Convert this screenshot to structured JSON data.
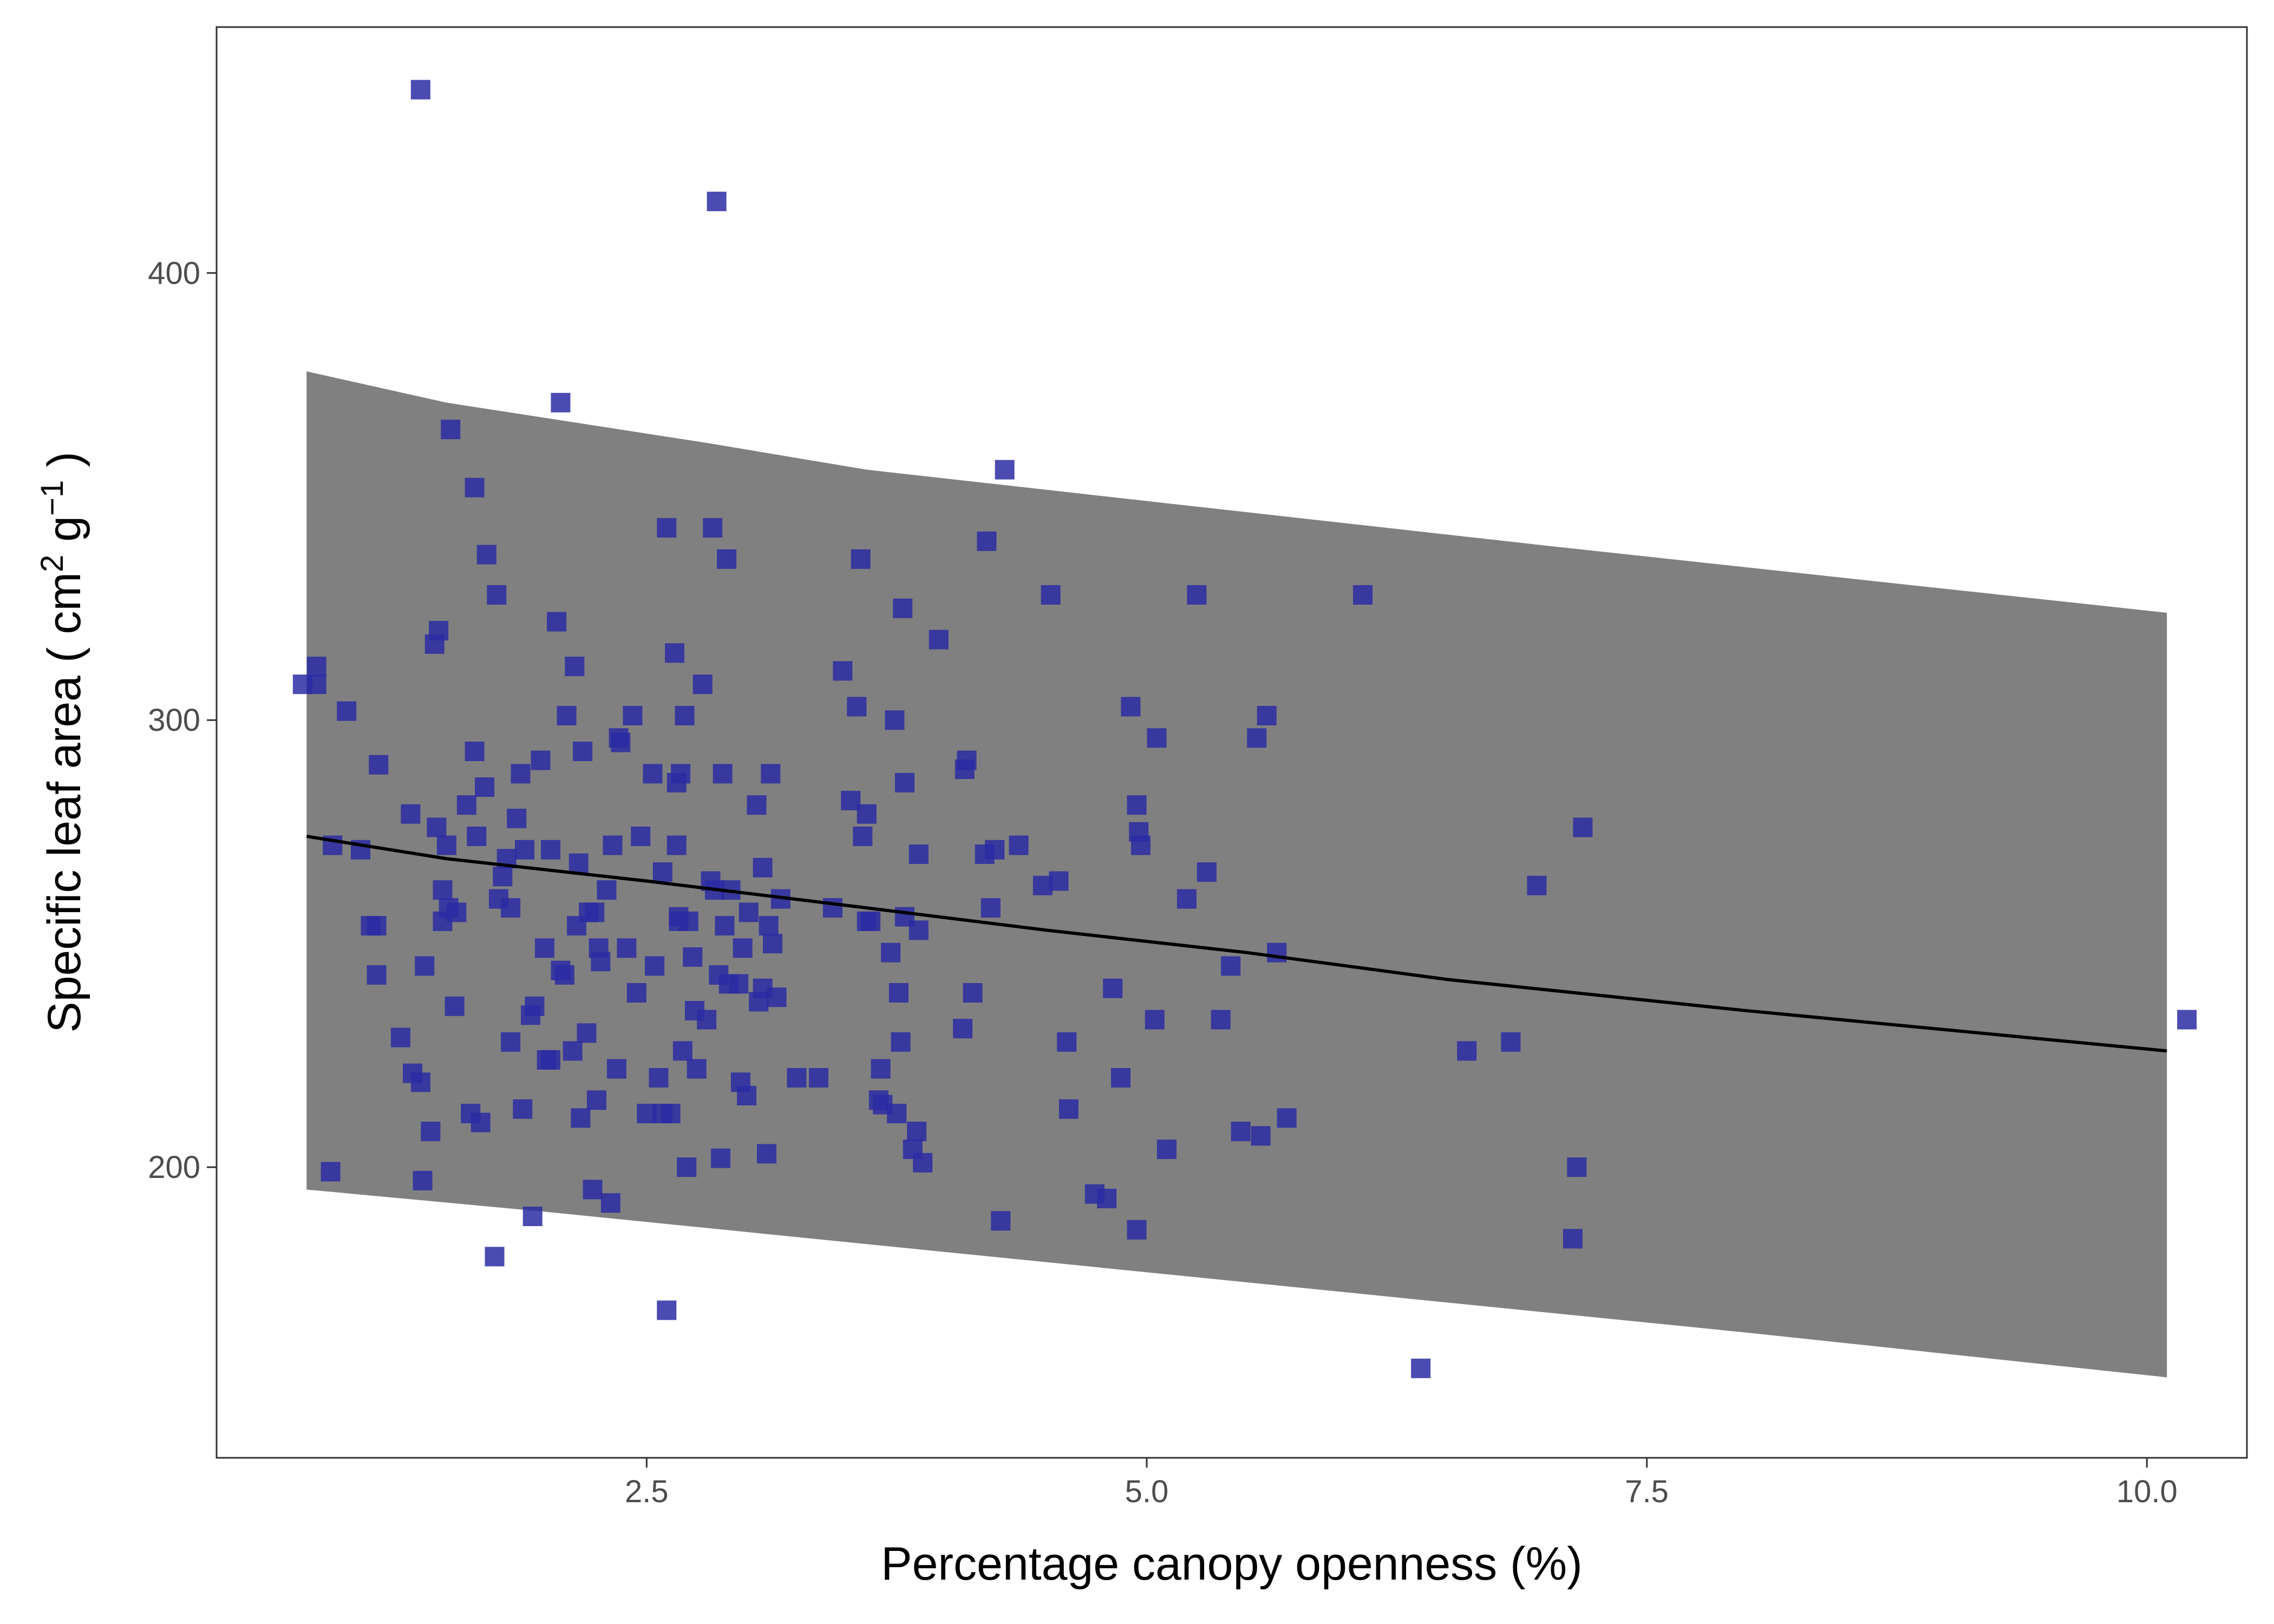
{
  "chart_data": {
    "type": "scatter",
    "xlabel": "Percentage canopy openness (%)",
    "ylabel": {
      "prefix": "Specific leaf area ( cm",
      "exp1": "2",
      "mid": " g",
      "exp2": "−1",
      "suffix": " )"
    },
    "xlim": [
      0.35,
      10.5
    ],
    "ylim": [
      135,
      455
    ],
    "x_ticks": [
      {
        "value": 2.5,
        "label": "2.5"
      },
      {
        "value": 5.0,
        "label": "5.0"
      },
      {
        "value": 7.5,
        "label": "7.5"
      },
      {
        "value": 10.0,
        "label": "10.0"
      }
    ],
    "y_ticks": [
      {
        "value": 200,
        "label": "200"
      },
      {
        "value": 300,
        "label": "300"
      },
      {
        "value": 400,
        "label": "400"
      }
    ],
    "grid": false,
    "legend": "none",
    "colors": {
      "point": "#2b2ba3",
      "band": "#808080",
      "fit_line": "#000000",
      "panel_border": "#333333"
    },
    "fit_line": [
      [
        0.8,
        274
      ],
      [
        1.5,
        269
      ],
      [
        2.5,
        264
      ],
      [
        3.6,
        258
      ],
      [
        4.5,
        253
      ],
      [
        5.5,
        248
      ],
      [
        6.5,
        242
      ],
      [
        8.0,
        235
      ],
      [
        10.1,
        226
      ]
    ],
    "prediction_band": {
      "upper": [
        [
          0.8,
          378
        ],
        [
          1.5,
          371
        ],
        [
          2.8,
          362
        ],
        [
          3.6,
          356
        ],
        [
          5.0,
          349
        ],
        [
          7.0,
          339
        ],
        [
          10.1,
          324
        ]
      ],
      "lower": [
        [
          0.8,
          195
        ],
        [
          2.0,
          190
        ],
        [
          4.0,
          181
        ],
        [
          6.0,
          172
        ],
        [
          8.0,
          163
        ],
        [
          10.1,
          153
        ]
      ]
    },
    "points": [
      [
        0.78,
        308
      ],
      [
        0.85,
        308
      ],
      [
        0.85,
        312
      ],
      [
        0.93,
        272
      ],
      [
        0.92,
        199
      ],
      [
        1.0,
        302
      ],
      [
        1.07,
        271
      ],
      [
        1.12,
        254
      ],
      [
        1.15,
        254
      ],
      [
        1.15,
        243
      ],
      [
        1.16,
        290
      ],
      [
        1.27,
        229
      ],
      [
        1.32,
        279
      ],
      [
        1.33,
        221
      ],
      [
        1.37,
        219
      ],
      [
        1.38,
        197
      ],
      [
        1.39,
        245
      ],
      [
        1.42,
        208
      ],
      [
        1.44,
        317
      ],
      [
        1.45,
        276
      ],
      [
        1.46,
        320
      ],
      [
        1.48,
        262
      ],
      [
        1.48,
        255
      ],
      [
        1.5,
        272
      ],
      [
        1.51,
        258
      ],
      [
        1.52,
        365
      ],
      [
        1.54,
        236
      ],
      [
        1.55,
        257
      ],
      [
        1.6,
        281
      ],
      [
        1.62,
        212
      ],
      [
        1.64,
        293
      ],
      [
        1.64,
        352
      ],
      [
        1.65,
        274
      ],
      [
        1.67,
        210
      ],
      [
        1.69,
        285
      ],
      [
        1.7,
        337
      ],
      [
        1.75,
        328
      ],
      [
        1.76,
        260
      ],
      [
        1.78,
        265
      ],
      [
        1.8,
        269
      ],
      [
        1.82,
        228
      ],
      [
        1.82,
        258
      ],
      [
        1.85,
        278
      ],
      [
        1.87,
        288
      ],
      [
        1.88,
        213
      ],
      [
        1.89,
        271
      ],
      [
        1.92,
        234
      ],
      [
        1.94,
        236
      ],
      [
        1.97,
        291
      ],
      [
        1.99,
        249
      ],
      [
        2.0,
        224
      ],
      [
        2.02,
        224
      ],
      [
        2.02,
        271
      ],
      [
        2.05,
        322
      ],
      [
        2.07,
        244
      ],
      [
        2.09,
        243
      ],
      [
        2.1,
        301
      ],
      [
        2.13,
        226
      ],
      [
        2.14,
        312
      ],
      [
        2.15,
        254
      ],
      [
        2.16,
        268
      ],
      [
        2.17,
        211
      ],
      [
        2.18,
        293
      ],
      [
        2.2,
        230
      ],
      [
        2.21,
        257
      ],
      [
        2.23,
        195
      ],
      [
        2.24,
        257
      ],
      [
        2.25,
        215
      ],
      [
        2.26,
        249
      ],
      [
        2.27,
        246
      ],
      [
        2.3,
        262
      ],
      [
        2.32,
        192
      ],
      [
        2.33,
        272
      ],
      [
        2.35,
        222
      ],
      [
        2.36,
        296
      ],
      [
        2.37,
        295
      ],
      [
        2.4,
        249
      ],
      [
        2.43,
        301
      ],
      [
        2.45,
        239
      ],
      [
        2.47,
        274
      ],
      [
        2.5,
        212
      ],
      [
        2.53,
        288
      ],
      [
        2.54,
        245
      ],
      [
        2.56,
        220
      ],
      [
        2.58,
        212
      ],
      [
        2.58,
        266
      ],
      [
        2.6,
        343
      ],
      [
        2.62,
        212
      ],
      [
        2.64,
        315
      ],
      [
        2.65,
        272
      ],
      [
        2.65,
        286
      ],
      [
        2.66,
        256
      ],
      [
        2.66,
        255
      ],
      [
        2.67,
        288
      ],
      [
        2.68,
        226
      ],
      [
        2.69,
        301
      ],
      [
        2.7,
        200
      ],
      [
        2.71,
        255
      ],
      [
        2.73,
        247
      ],
      [
        2.74,
        235
      ],
      [
        2.75,
        222
      ],
      [
        2.78,
        308
      ],
      [
        2.8,
        233
      ],
      [
        2.82,
        264
      ],
      [
        2.83,
        343
      ],
      [
        2.84,
        262
      ],
      [
        2.86,
        243
      ],
      [
        2.87,
        202
      ],
      [
        2.88,
        288
      ],
      [
        2.89,
        254
      ],
      [
        2.9,
        336
      ],
      [
        2.91,
        241
      ],
      [
        2.92,
        262
      ],
      [
        2.96,
        241
      ],
      [
        2.97,
        219
      ],
      [
        2.98,
        249
      ],
      [
        3.0,
        216
      ],
      [
        3.01,
        257
      ],
      [
        3.05,
        281
      ],
      [
        3.06,
        237
      ],
      [
        3.08,
        267
      ],
      [
        3.08,
        240
      ],
      [
        3.1,
        203
      ],
      [
        3.11,
        254
      ],
      [
        3.12,
        288
      ],
      [
        3.13,
        250
      ],
      [
        3.15,
        238
      ],
      [
        3.17,
        260
      ],
      [
        3.25,
        220
      ],
      [
        3.36,
        220
      ],
      [
        3.43,
        258
      ],
      [
        3.48,
        311
      ],
      [
        3.52,
        282
      ],
      [
        3.55,
        303
      ],
      [
        3.57,
        336
      ],
      [
        3.58,
        274
      ],
      [
        3.6,
        279
      ],
      [
        3.6,
        255
      ],
      [
        3.62,
        255
      ],
      [
        3.66,
        215
      ],
      [
        3.67,
        222
      ],
      [
        3.68,
        214
      ],
      [
        3.72,
        248
      ],
      [
        3.74,
        300
      ],
      [
        3.75,
        212
      ],
      [
        3.76,
        239
      ],
      [
        3.77,
        228
      ],
      [
        3.78,
        325
      ],
      [
        3.79,
        286
      ],
      [
        3.79,
        256
      ],
      [
        3.83,
        204
      ],
      [
        3.85,
        208
      ],
      [
        3.86,
        253
      ],
      [
        3.86,
        270
      ],
      [
        3.88,
        201
      ],
      [
        3.96,
        318
      ],
      [
        4.08,
        231
      ],
      [
        4.09,
        289
      ],
      [
        4.1,
        291
      ],
      [
        4.13,
        239
      ],
      [
        4.19,
        270
      ],
      [
        4.2,
        340
      ],
      [
        4.22,
        258
      ],
      [
        4.24,
        271
      ],
      [
        4.27,
        188
      ],
      [
        4.36,
        272
      ],
      [
        4.48,
        263
      ],
      [
        4.52,
        328
      ],
      [
        4.56,
        264
      ],
      [
        4.6,
        228
      ],
      [
        4.61,
        213
      ],
      [
        4.74,
        194
      ],
      [
        4.8,
        193
      ],
      [
        4.83,
        240
      ],
      [
        4.87,
        220
      ],
      [
        4.92,
        303
      ],
      [
        4.95,
        186
      ],
      [
        4.95,
        281
      ],
      [
        4.96,
        275
      ],
      [
        4.97,
        272
      ],
      [
        5.04,
        233
      ],
      [
        5.05,
        296
      ],
      [
        5.1,
        204
      ],
      [
        5.2,
        260
      ],
      [
        5.25,
        328
      ],
      [
        5.3,
        266
      ],
      [
        5.37,
        233
      ],
      [
        5.42,
        245
      ],
      [
        5.47,
        208
      ],
      [
        5.55,
        296
      ],
      [
        5.57,
        207
      ],
      [
        5.6,
        301
      ],
      [
        5.65,
        248
      ],
      [
        5.7,
        211
      ],
      [
        6.08,
        328
      ],
      [
        6.6,
        226
      ],
      [
        6.82,
        228
      ],
      [
        6.95,
        263
      ],
      [
        7.13,
        184
      ],
      [
        7.15,
        200
      ],
      [
        7.18,
        276
      ],
      [
        10.2,
        233
      ],
      [
        1.37,
        441
      ],
      [
        2.85,
        416
      ],
      [
        2.07,
        371
      ],
      [
        4.29,
        356
      ],
      [
        1.74,
        180
      ],
      [
        2.6,
        168
      ],
      [
        1.93,
        189
      ],
      [
        6.37,
        155
      ]
    ]
  }
}
